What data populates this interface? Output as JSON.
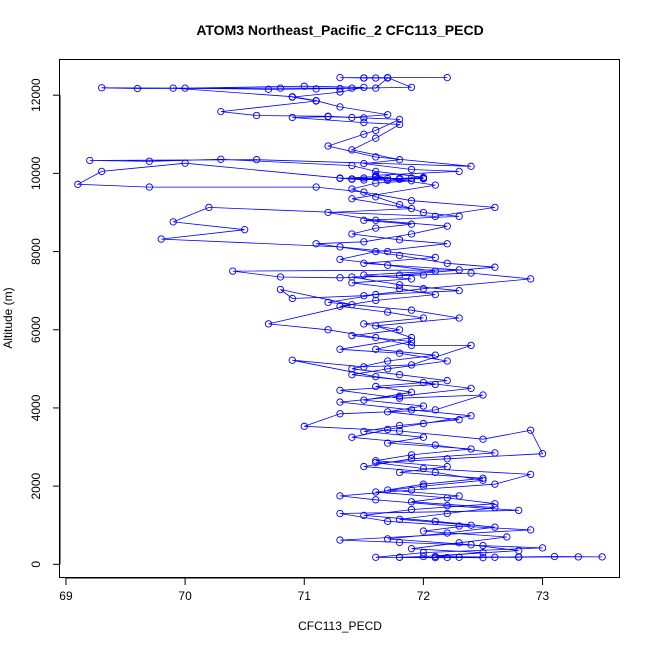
{
  "chart_data": {
    "type": "line",
    "title": "ATOM3 Northeast_Pacific_2 CFC113_PECD",
    "xlabel": "CFC113_PECD",
    "ylabel": "Altitude (m)",
    "xlim": [
      68.95,
      73.65
    ],
    "ylim": [
      -350,
      12900
    ],
    "x_ticks": [
      69,
      70,
      71,
      72,
      73
    ],
    "y_ticks": [
      0,
      2000,
      4000,
      6000,
      8000,
      10000,
      12000
    ],
    "grid": false,
    "legend": "none",
    "color": "#0000ff",
    "marker": "open-circle",
    "series": [
      {
        "values": [
          [
            72.2,
            12450
          ],
          [
            71.3,
            12450
          ],
          [
            71.5,
            12440
          ],
          [
            71.7,
            12450
          ],
          [
            71.9,
            12200
          ],
          [
            71.4,
            12180
          ],
          [
            70.8,
            12180
          ],
          [
            69.6,
            12170
          ],
          [
            69.3,
            12190
          ],
          [
            70.0,
            12180
          ],
          [
            71.0,
            12230
          ],
          [
            71.5,
            12200
          ],
          [
            71.3,
            12080
          ],
          [
            70.9,
            11950
          ],
          [
            71.1,
            11850
          ],
          [
            70.3,
            11580
          ],
          [
            70.6,
            11480
          ],
          [
            71.2,
            11460
          ],
          [
            71.5,
            11420
          ],
          [
            71.8,
            11380
          ],
          [
            71.6,
            11100
          ],
          [
            71.5,
            11000
          ],
          [
            71.2,
            10700
          ],
          [
            71.6,
            10420
          ],
          [
            72.4,
            10180
          ],
          [
            70.6,
            10350
          ],
          [
            69.2,
            10330
          ],
          [
            69.7,
            10310
          ],
          [
            70.3,
            10360
          ],
          [
            71.4,
            10200
          ],
          [
            71.6,
            10050
          ],
          [
            72.0,
            9900
          ],
          [
            71.8,
            9870
          ],
          [
            71.4,
            9850
          ],
          [
            70.0,
            10260
          ],
          [
            69.3,
            10050
          ],
          [
            69.1,
            9720
          ],
          [
            69.7,
            9650
          ],
          [
            71.1,
            9650
          ],
          [
            71.5,
            9520
          ],
          [
            71.9,
            9300
          ],
          [
            72.6,
            9130
          ],
          [
            72.1,
            8900
          ],
          [
            70.2,
            9130
          ],
          [
            69.9,
            8760
          ],
          [
            70.5,
            8560
          ],
          [
            69.8,
            8320
          ],
          [
            71.3,
            8120
          ],
          [
            71.7,
            8000
          ],
          [
            72.1,
            7850
          ],
          [
            71.5,
            7700
          ],
          [
            72.3,
            7530
          ],
          [
            70.4,
            7500
          ],
          [
            70.8,
            7350
          ],
          [
            71.3,
            7330
          ],
          [
            72.4,
            7450
          ],
          [
            72.9,
            7300
          ],
          [
            72.0,
            7050
          ],
          [
            71.5,
            6870
          ],
          [
            70.9,
            6800
          ],
          [
            70.8,
            7030
          ],
          [
            71.4,
            6640
          ],
          [
            70.7,
            6150
          ],
          [
            71.2,
            6000
          ],
          [
            71.6,
            5800
          ],
          [
            71.9,
            5600
          ],
          [
            72.4,
            5600
          ],
          [
            71.9,
            5100
          ],
          [
            71.5,
            5050
          ],
          [
            70.9,
            5220
          ],
          [
            71.6,
            4800
          ],
          [
            72.1,
            4600
          ],
          [
            71.3,
            4450
          ],
          [
            71.8,
            4250
          ],
          [
            72.5,
            4330
          ],
          [
            72.1,
            3950
          ],
          [
            71.3,
            3850
          ],
          [
            71.0,
            3530
          ],
          [
            71.8,
            3410
          ],
          [
            72.5,
            3200
          ],
          [
            72.9,
            3430
          ],
          [
            73.0,
            2830
          ],
          [
            72.2,
            2700
          ],
          [
            71.6,
            2600
          ],
          [
            72.0,
            2450
          ],
          [
            72.9,
            2300
          ],
          [
            72.6,
            2050
          ],
          [
            71.9,
            1900
          ],
          [
            71.3,
            1750
          ],
          [
            71.6,
            1650
          ],
          [
            72.2,
            1500
          ],
          [
            72.8,
            1380
          ],
          [
            71.3,
            1300
          ],
          [
            71.7,
            1100
          ],
          [
            72.3,
            980
          ],
          [
            72.9,
            880
          ],
          [
            71.3,
            620
          ],
          [
            71.8,
            560
          ],
          [
            72.5,
            480
          ],
          [
            73.0,
            420
          ],
          [
            72.0,
            300
          ],
          [
            71.6,
            180
          ],
          [
            72.3,
            180
          ],
          [
            72.8,
            190
          ],
          [
            73.1,
            200
          ],
          [
            73.5,
            190
          ],
          [
            73.3,
            190
          ],
          [
            72.6,
            180
          ],
          [
            72.1,
            170
          ],
          [
            71.8,
            180
          ]
        ]
      },
      {
        "values": [
          [
            71.3,
            9880
          ],
          [
            71.5,
            9830
          ],
          [
            71.6,
            9900
          ],
          [
            71.8,
            9850
          ],
          [
            72.0,
            9880
          ],
          [
            71.7,
            9820
          ],
          [
            71.4,
            9860
          ],
          [
            71.9,
            9810
          ],
          [
            71.6,
            9750
          ],
          [
            71.4,
            9600
          ],
          [
            71.6,
            9400
          ],
          [
            71.8,
            9200
          ],
          [
            72.0,
            9000
          ],
          [
            72.3,
            8900
          ],
          [
            71.5,
            8800
          ],
          [
            71.9,
            8700
          ],
          [
            71.6,
            8600
          ],
          [
            71.4,
            8450
          ],
          [
            71.8,
            8300
          ],
          [
            72.2,
            8200
          ],
          [
            71.6,
            8000
          ],
          [
            71.3,
            7800
          ],
          [
            71.7,
            7650
          ],
          [
            72.1,
            7500
          ],
          [
            71.5,
            7400
          ],
          [
            71.9,
            7300
          ],
          [
            71.4,
            7200
          ],
          [
            71.8,
            7050
          ],
          [
            72.1,
            6900
          ],
          [
            71.6,
            6750
          ],
          [
            71.3,
            6600
          ],
          [
            71.7,
            6450
          ],
          [
            72.0,
            6300
          ],
          [
            71.5,
            6150
          ],
          [
            71.8,
            6000
          ],
          [
            71.4,
            5850
          ],
          [
            71.9,
            5700
          ],
          [
            71.6,
            5500
          ],
          [
            72.1,
            5350
          ],
          [
            71.7,
            5200
          ],
          [
            71.4,
            5000
          ],
          [
            71.8,
            4850
          ],
          [
            72.2,
            4700
          ],
          [
            71.6,
            4550
          ],
          [
            71.9,
            4400
          ],
          [
            71.5,
            4200
          ],
          [
            72.0,
            4050
          ],
          [
            71.7,
            3900
          ],
          [
            72.3,
            3700
          ],
          [
            71.8,
            3550
          ],
          [
            71.5,
            3400
          ],
          [
            72.0,
            3250
          ],
          [
            71.7,
            3100
          ],
          [
            72.4,
            2950
          ],
          [
            71.9,
            2800
          ],
          [
            71.6,
            2650
          ],
          [
            72.2,
            2500
          ],
          [
            71.8,
            2350
          ],
          [
            72.5,
            2200
          ],
          [
            72.0,
            2050
          ],
          [
            71.7,
            1900
          ],
          [
            72.3,
            1750
          ],
          [
            71.9,
            1600
          ],
          [
            72.6,
            1450
          ],
          [
            72.2,
            1300
          ],
          [
            71.8,
            1150
          ],
          [
            72.4,
            1000
          ],
          [
            72.0,
            850
          ],
          [
            72.7,
            700
          ],
          [
            72.3,
            550
          ],
          [
            71.9,
            400
          ],
          [
            72.5,
            300
          ],
          [
            72.1,
            200
          ],
          [
            72.8,
            180
          ]
        ]
      },
      {
        "values": [
          [
            71.5,
            12440
          ],
          [
            71.6,
            12440
          ],
          [
            71.7,
            12440
          ],
          [
            71.6,
            12180
          ],
          [
            71.3,
            12170
          ],
          [
            71.1,
            12160
          ],
          [
            70.7,
            12150
          ],
          [
            69.9,
            12180
          ],
          [
            70.9,
            11960
          ],
          [
            71.1,
            11860
          ],
          [
            71.3,
            11700
          ],
          [
            71.7,
            11500
          ],
          [
            71.4,
            11430
          ],
          [
            71.2,
            11450
          ],
          [
            70.9,
            11430
          ],
          [
            71.5,
            11300
          ],
          [
            71.8,
            11250
          ],
          [
            71.6,
            10900
          ],
          [
            71.4,
            10600
          ],
          [
            71.8,
            10350
          ],
          [
            71.5,
            10250
          ],
          [
            71.9,
            10100
          ],
          [
            72.3,
            10050
          ],
          [
            71.6,
            9950
          ],
          [
            71.7,
            9870
          ],
          [
            71.9,
            9880
          ],
          [
            72.0,
            9860
          ],
          [
            71.5,
            9880
          ],
          [
            71.3,
            9870
          ],
          [
            71.6,
            9920
          ],
          [
            72.1,
            9700
          ],
          [
            71.4,
            9350
          ],
          [
            71.9,
            9100
          ],
          [
            71.2,
            9000
          ],
          [
            71.6,
            8800
          ],
          [
            72.2,
            8650
          ],
          [
            71.9,
            8450
          ],
          [
            71.5,
            8250
          ],
          [
            71.1,
            8200
          ],
          [
            71.8,
            7900
          ],
          [
            72.2,
            7700
          ],
          [
            72.6,
            7600
          ],
          [
            71.8,
            7400
          ],
          [
            72.0,
            7400
          ],
          [
            71.4,
            7350
          ],
          [
            71.8,
            7150
          ],
          [
            72.3,
            7000
          ],
          [
            71.6,
            6900
          ],
          [
            71.2,
            6700
          ],
          [
            71.9,
            6500
          ],
          [
            72.3,
            6300
          ],
          [
            71.6,
            6100
          ],
          [
            71.9,
            5800
          ],
          [
            71.3,
            5500
          ],
          [
            71.8,
            5400
          ],
          [
            72.2,
            5200
          ],
          [
            71.7,
            5000
          ],
          [
            71.4,
            4850
          ],
          [
            72.0,
            4650
          ],
          [
            72.4,
            4500
          ],
          [
            71.8,
            4300
          ],
          [
            71.3,
            4150
          ],
          [
            71.9,
            3950
          ],
          [
            72.4,
            3800
          ],
          [
            72.0,
            3600
          ],
          [
            71.7,
            3450
          ],
          [
            71.4,
            3250
          ],
          [
            72.1,
            3050
          ],
          [
            72.6,
            2850
          ],
          [
            71.9,
            2700
          ],
          [
            71.5,
            2500
          ],
          [
            72.1,
            2350
          ],
          [
            72.5,
            2150
          ],
          [
            72.0,
            2000
          ],
          [
            71.6,
            1850
          ],
          [
            72.2,
            1700
          ],
          [
            72.6,
            1550
          ],
          [
            71.9,
            1400
          ],
          [
            71.5,
            1250
          ],
          [
            72.1,
            1100
          ],
          [
            72.6,
            950
          ],
          [
            72.2,
            800
          ],
          [
            71.7,
            650
          ],
          [
            72.4,
            500
          ],
          [
            72.8,
            350
          ],
          [
            72.0,
            200
          ],
          [
            71.8,
            180
          ],
          [
            72.5,
            170
          ],
          [
            72.2,
            175
          ]
        ]
      }
    ]
  }
}
